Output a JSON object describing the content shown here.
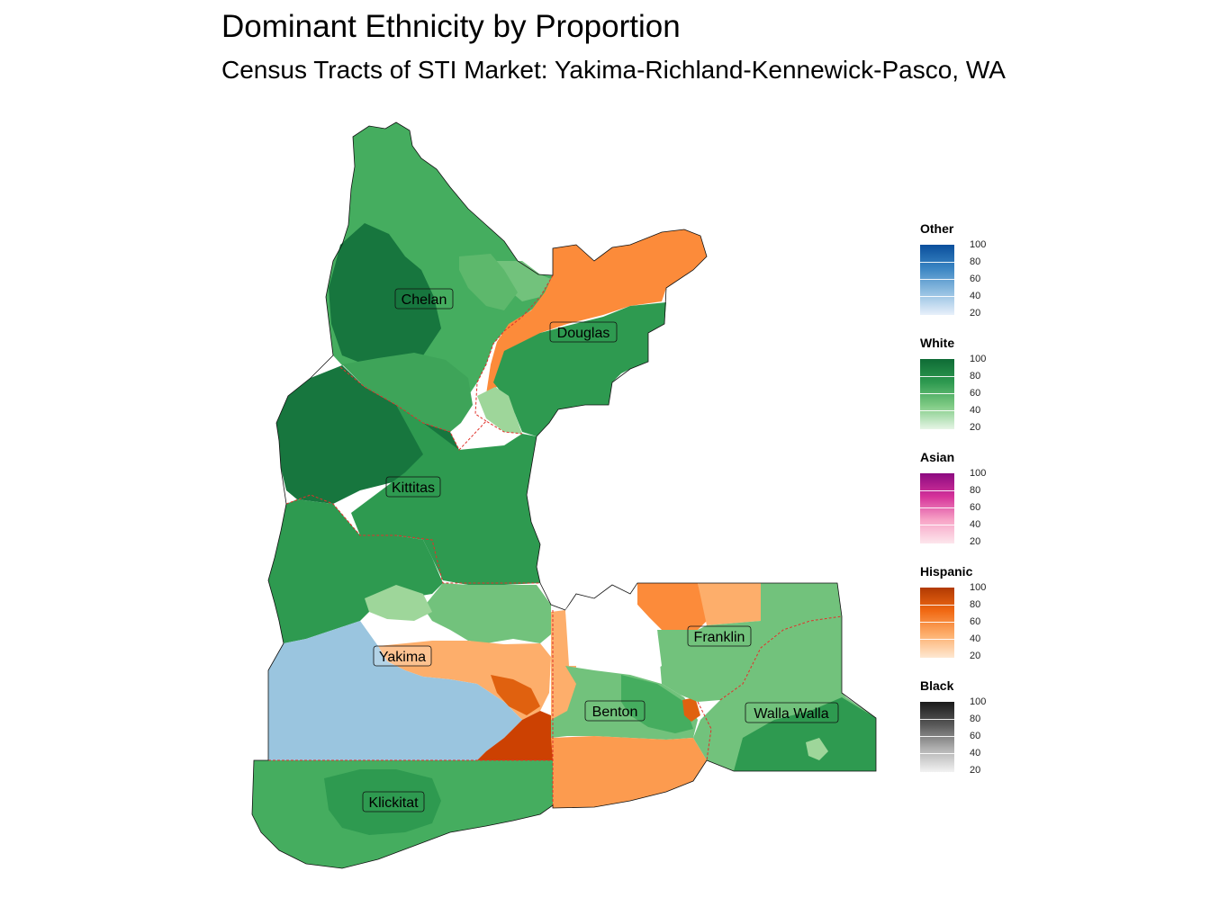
{
  "title": "Dominant Ethnicity by Proportion",
  "subtitle": "Census Tracts of STI Market: Yakima-Richland-Kennewick-Pasco, WA",
  "counties": [
    {
      "name": "Chelan"
    },
    {
      "name": "Douglas"
    },
    {
      "name": "Kittitas"
    },
    {
      "name": "Yakima"
    },
    {
      "name": "Franklin"
    },
    {
      "name": "Benton"
    },
    {
      "name": "Walla Walla"
    },
    {
      "name": "Klickitat"
    }
  ],
  "legend": [
    {
      "title": "Other",
      "color_low": "#e8f0fa",
      "color_high": "#0a4f9c",
      "ticks": [
        "100",
        "80",
        "60",
        "40",
        "20"
      ]
    },
    {
      "title": "White",
      "color_low": "#e6f5e6",
      "color_high": "#0e6b35",
      "ticks": [
        "100",
        "80",
        "60",
        "40",
        "20"
      ]
    },
    {
      "title": "Asian",
      "color_low": "#fde6ec",
      "color_high": "#8c0a80",
      "ticks": [
        "100",
        "80",
        "60",
        "40",
        "20"
      ]
    },
    {
      "title": "Hispanic",
      "color_low": "#fee8d2",
      "color_high": "#b13a03",
      "ticks": [
        "100",
        "80",
        "60",
        "40",
        "20"
      ]
    },
    {
      "title": "Black",
      "color_low": "#f2f2f2",
      "color_high": "#1a1a1a",
      "ticks": [
        "100",
        "80",
        "60",
        "40",
        "20"
      ]
    }
  ],
  "colors": {
    "white_dark": "#17763e",
    "white_mid": "#2e9a50",
    "white_med": "#45ad5f",
    "white_light": "#72c27c",
    "white_pale": "#9ed69a",
    "hispanic_mid": "#fc8b3a",
    "hispanic_light": "#fdae6b",
    "hispanic_dark": "#d74a05",
    "other_light": "#9ac5df",
    "border": "#e0322b"
  }
}
